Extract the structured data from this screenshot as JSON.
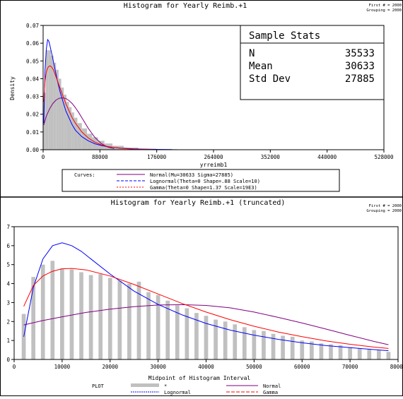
{
  "panels": [
    {
      "title": "Histogram for Yearly Reimb.+1",
      "corner_lines": [
        "First # = 2000",
        "Grouping = 2000"
      ],
      "stats_box": {
        "title": "Sample Stats",
        "rows": [
          {
            "label": "N",
            "value": "35533"
          },
          {
            "label": "Mean",
            "value": "30633"
          },
          {
            "label": "Std Dev",
            "value": "27885"
          }
        ]
      },
      "legend": {
        "header": "Curves:",
        "entries": [
          {
            "label": "Normal(Mu=30633 Sigma=27885)",
            "color": "#800080",
            "dash": "none"
          },
          {
            "label": "Lognormal(Theta=0 Shape=.88 Scale=10)",
            "color": "#0000ff",
            "dash": "4,2"
          },
          {
            "label": "Gamma(Theta=0 Shape=1.37 Scale=19E3)",
            "color": "#ff0000",
            "dash": "2,2"
          }
        ]
      }
    },
    {
      "title": "Histogram for Yearly Reimb.+1 (truncated)",
      "corner_lines": [
        "First # = 2000",
        "Grouping = 2000"
      ],
      "legend": {
        "header": "PLOT",
        "entries": [
          {
            "label": "*",
            "color": "#c0c0c0",
            "kind": "bar"
          },
          {
            "label": "Normal",
            "color": "#800080",
            "kind": "line"
          },
          {
            "label": "Lognormal",
            "color": "#0000ff",
            "kind": "line"
          },
          {
            "label": "Gamma",
            "color": "#ff0000",
            "kind": "line"
          }
        ]
      }
    }
  ],
  "chart_data": [
    {
      "type": "bar",
      "title": "Histogram for Yearly Reimb.+1",
      "xlabel": "yrreimb1",
      "ylabel": "Density",
      "xlim": [
        0,
        528000
      ],
      "ylim": [
        0,
        0.07
      ],
      "x_ticks": [
        "0",
        "88000",
        "176000",
        "264000",
        "352000",
        "440000",
        "528000"
      ],
      "y_ticks": [
        "0.00",
        "0.01",
        "0.02",
        "0.03",
        "0.04",
        "0.05",
        "0.06",
        "0.07"
      ],
      "histogram": {
        "x": [
          2000,
          6000,
          10000,
          14000,
          18000,
          22000,
          26000,
          30000,
          34000,
          38000,
          42000,
          46000,
          50000,
          56000,
          64000,
          72000,
          80000,
          90000,
          100000,
          115000,
          135000,
          160000,
          190000,
          225000
        ],
        "values": [
          0.032,
          0.056,
          0.056,
          0.053,
          0.049,
          0.045,
          0.04,
          0.035,
          0.031,
          0.027,
          0.024,
          0.021,
          0.018,
          0.015,
          0.012,
          0.009,
          0.007,
          0.005,
          0.0035,
          0.0022,
          0.0012,
          0.0006,
          0.0003,
          0.0001
        ]
      },
      "series": [
        {
          "name": "Normal",
          "x": [
            1000,
            5000,
            10000,
            15000,
            20000,
            25000,
            30000,
            35000,
            40000,
            45000,
            50000,
            55000,
            60000,
            70000,
            80000,
            90000,
            100000,
            110000
          ],
          "values": [
            0.014,
            0.019,
            0.023,
            0.026,
            0.028,
            0.029,
            0.0292,
            0.0289,
            0.0277,
            0.026,
            0.0237,
            0.021,
            0.018,
            0.012,
            0.007,
            0.0035,
            0.0015,
            0.0005
          ]
        },
        {
          "name": "Lognormal",
          "x": [
            1000,
            3000,
            5000,
            7000,
            9000,
            11000,
            14000,
            18000,
            22000,
            26000,
            30000,
            35000,
            40000,
            45000,
            50000,
            60000,
            70000,
            80000,
            90000,
            100000,
            120000,
            140000,
            170000,
            200000
          ],
          "values": [
            0.015,
            0.045,
            0.057,
            0.062,
            0.061,
            0.058,
            0.053,
            0.046,
            0.039,
            0.033,
            0.028,
            0.022,
            0.018,
            0.014,
            0.011,
            0.0073,
            0.005,
            0.0034,
            0.0024,
            0.0017,
            0.0009,
            0.0005,
            0.0002,
            0.0001
          ]
        },
        {
          "name": "Gamma",
          "x": [
            1000,
            3000,
            5000,
            7000,
            9000,
            11000,
            13000,
            16000,
            20000,
            25000,
            30000,
            35000,
            40000,
            45000,
            50000,
            60000,
            70000,
            80000,
            90000,
            100000,
            120000,
            140000,
            170000
          ],
          "values": [
            0.027,
            0.039,
            0.044,
            0.046,
            0.047,
            0.0472,
            0.0466,
            0.045,
            0.041,
            0.036,
            0.031,
            0.026,
            0.022,
            0.018,
            0.015,
            0.01,
            0.0066,
            0.0043,
            0.0028,
            0.0018,
            0.0008,
            0.0003,
            0.0001
          ]
        }
      ]
    },
    {
      "type": "bar",
      "title": "Histogram for Yearly Reimb.+1 (truncated)",
      "xlabel": "Midpoint of Histogram Interval",
      "ylabel": "",
      "xlim": [
        0,
        80000
      ],
      "ylim": [
        0,
        7
      ],
      "x_ticks": [
        "0",
        "10000",
        "20000",
        "30000",
        "40000",
        "50000",
        "60000",
        "70000",
        "80000"
      ],
      "y_ticks": [
        "0",
        "1",
        "2",
        "3",
        "4",
        "5",
        "6",
        "7"
      ],
      "histogram": {
        "x": [
          2000,
          4000,
          6000,
          8000,
          10000,
          12000,
          14000,
          16000,
          18000,
          20000,
          22000,
          24000,
          26000,
          28000,
          30000,
          32000,
          34000,
          36000,
          38000,
          40000,
          42000,
          44000,
          46000,
          48000,
          50000,
          52000,
          54000,
          56000,
          58000,
          60000,
          62000,
          64000,
          66000,
          68000,
          70000,
          72000,
          74000,
          76000,
          78000
        ],
        "values": [
          2.4,
          4.35,
          5.0,
          5.2,
          4.8,
          4.75,
          4.6,
          4.45,
          4.5,
          4.3,
          4.15,
          4.0,
          4.1,
          3.55,
          3.4,
          3.1,
          2.85,
          2.7,
          2.45,
          2.3,
          2.1,
          2.0,
          1.85,
          1.7,
          1.55,
          1.5,
          1.35,
          1.25,
          1.2,
          1.0,
          0.95,
          0.85,
          0.8,
          0.75,
          0.65,
          0.6,
          0.55,
          0.5,
          0.4
        ]
      },
      "series": [
        {
          "name": "Normal",
          "x": [
            2000,
            6000,
            10000,
            15000,
            20000,
            25000,
            30000,
            35000,
            40000,
            45000,
            50000,
            55000,
            60000,
            65000,
            70000,
            75000,
            78000
          ],
          "values": [
            1.82,
            2.05,
            2.25,
            2.48,
            2.65,
            2.78,
            2.87,
            2.89,
            2.85,
            2.72,
            2.5,
            2.22,
            1.92,
            1.6,
            1.27,
            0.95,
            0.78
          ]
        },
        {
          "name": "Lognormal",
          "x": [
            2000,
            4000,
            6000,
            8000,
            10000,
            12000,
            14000,
            16000,
            20000,
            25000,
            30000,
            35000,
            40000,
            45000,
            50000,
            55000,
            60000,
            65000,
            70000,
            75000,
            78000
          ],
          "values": [
            1.2,
            3.8,
            5.3,
            6.0,
            6.15,
            6.0,
            5.7,
            5.3,
            4.5,
            3.6,
            2.9,
            2.35,
            1.9,
            1.55,
            1.28,
            1.06,
            0.88,
            0.73,
            0.62,
            0.52,
            0.46
          ]
        },
        {
          "name": "Gamma",
          "x": [
            2000,
            4000,
            6000,
            8000,
            10000,
            12000,
            15000,
            20000,
            25000,
            30000,
            35000,
            40000,
            45000,
            50000,
            55000,
            60000,
            65000,
            70000,
            75000,
            78000
          ],
          "values": [
            2.8,
            3.9,
            4.4,
            4.65,
            4.78,
            4.8,
            4.72,
            4.4,
            3.95,
            3.45,
            2.95,
            2.5,
            2.1,
            1.75,
            1.45,
            1.2,
            0.98,
            0.8,
            0.65,
            0.58
          ]
        }
      ]
    }
  ]
}
